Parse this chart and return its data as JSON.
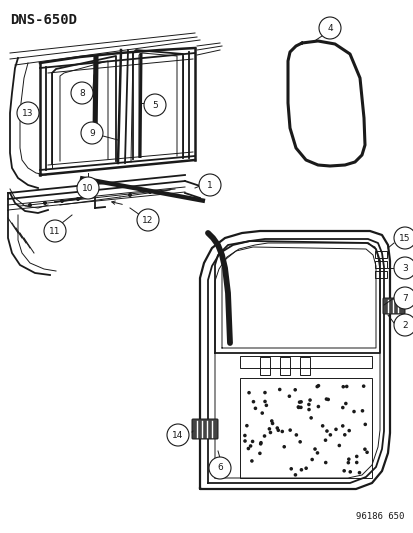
{
  "title": "DNS-650D",
  "footer": "96186 650",
  "bg_color": "#ffffff",
  "title_fontsize": 10,
  "footer_fontsize": 6.5,
  "line_color": "#1a1a1a",
  "lw_thick": 2.2,
  "lw_med": 1.3,
  "lw_thin": 0.7,
  "callout_r": 0.018,
  "callout_fs": 6.0
}
